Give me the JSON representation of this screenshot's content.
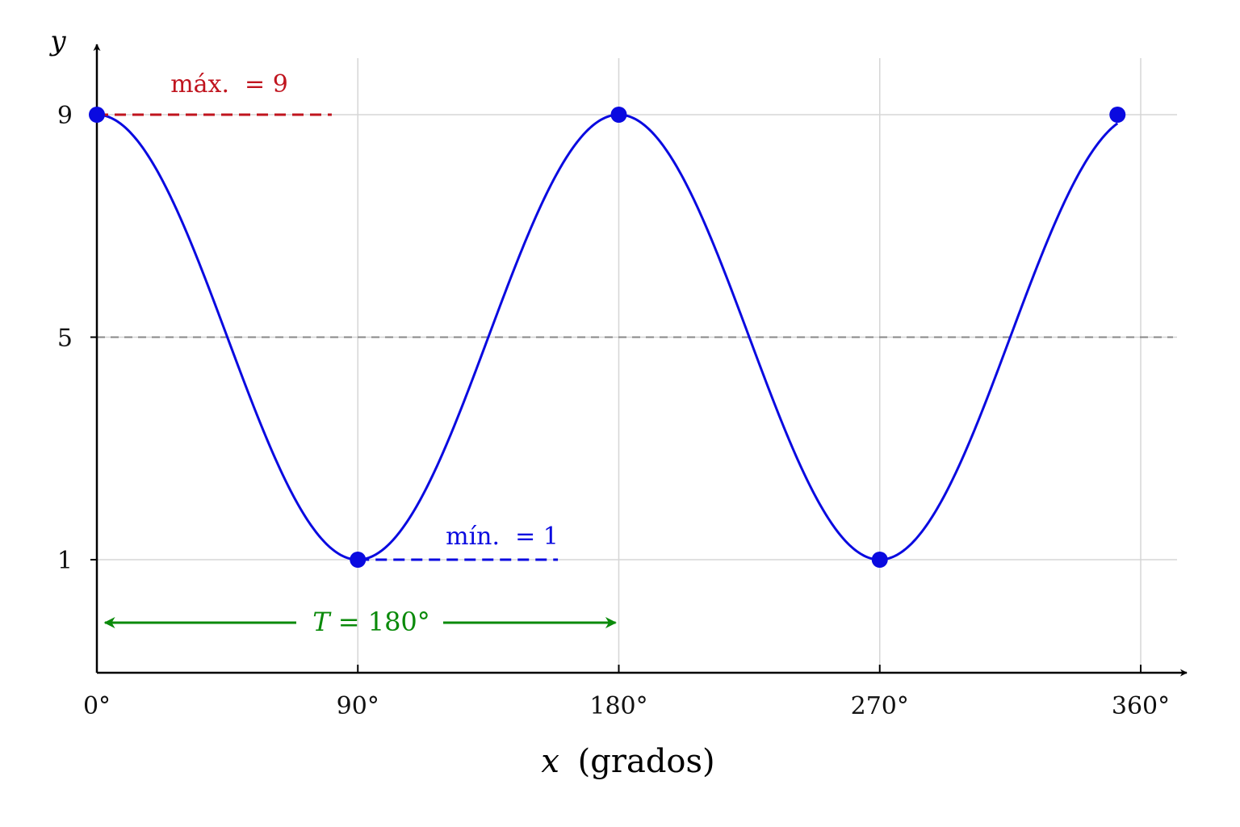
{
  "chart_data": {
    "type": "line",
    "x_axis": {
      "label_var": "x",
      "label_unit": "(grados)",
      "range": [
        0,
        360
      ],
      "ticks": [
        0,
        90,
        180,
        270,
        360
      ],
      "tick_labels": [
        "0°",
        "90°",
        "180°",
        "270°",
        "360°"
      ]
    },
    "y_axis": {
      "label": "y",
      "range": [
        -1.5,
        11.5
      ],
      "ticks": [
        1,
        5,
        9
      ],
      "tick_labels": [
        "1",
        "5",
        "9"
      ]
    },
    "grid": true,
    "series": [
      {
        "function": "5 + 4*cos(2x)",
        "color": "#0a0ae0",
        "x_range": [
          0,
          352
        ]
      }
    ],
    "key_points": [
      {
        "x": 0,
        "y": 9
      },
      {
        "x": 90,
        "y": 1
      },
      {
        "x": 180,
        "y": 9
      },
      {
        "x": 270,
        "y": 1
      },
      {
        "x": 352,
        "y": 9
      }
    ],
    "midline": {
      "y": 5,
      "color": "#888888"
    },
    "annotations": {
      "max": {
        "label": "máx.  = 9",
        "value": 9,
        "x_from": 0,
        "x_to": 81,
        "color": "#c0141e"
      },
      "min": {
        "label": "mín.  = 1",
        "value": 1,
        "x_from": 90,
        "x_to": 159,
        "color": "#0a0ae0"
      },
      "period": {
        "label_var": "T",
        "label_rest": " = 180°",
        "value": 180,
        "y": -1.8,
        "color": "#0a8a0a"
      }
    }
  }
}
